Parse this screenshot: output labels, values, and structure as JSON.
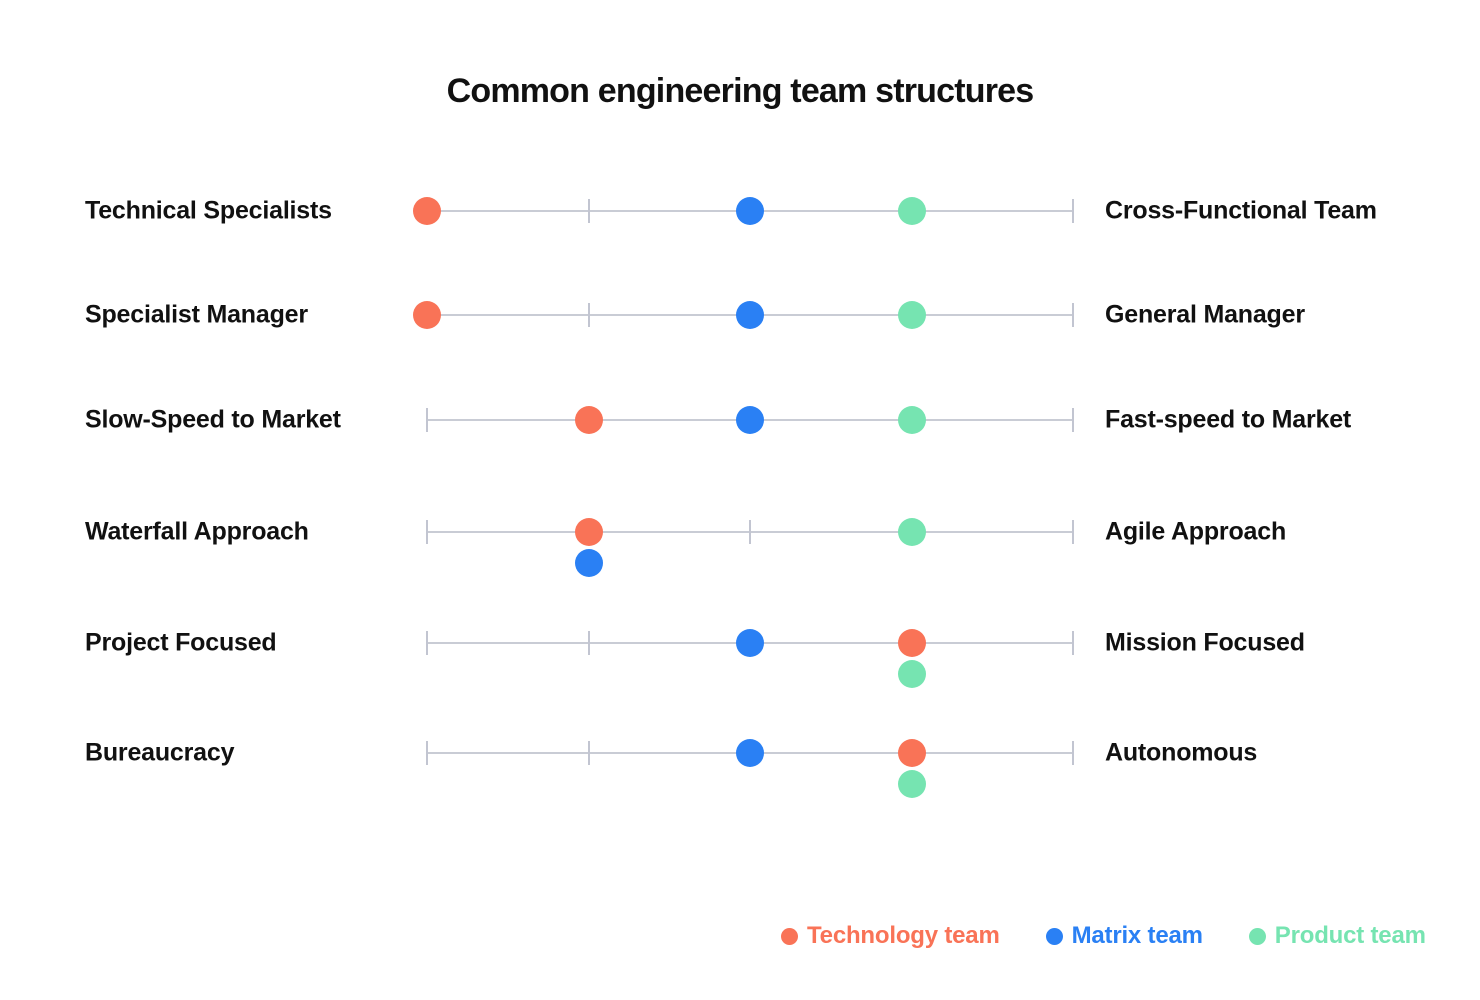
{
  "title": "Common engineering team structures",
  "colors": {
    "technology": "#F97357",
    "matrix": "#2A80F4",
    "product": "#76E4B1",
    "line": "#C9CCD5",
    "tick": "#C2C5D1",
    "text": "#111111",
    "background": "#FFFFFF"
  },
  "chart_data": {
    "type": "scatter",
    "subtype": "dot-spectrum",
    "title": "Common engineering team structures",
    "scale": {
      "min": 0,
      "max": 4,
      "ticks": [
        0,
        1,
        2,
        3,
        4
      ],
      "grid": false
    },
    "legend_position": "bottom-right",
    "legend": [
      {
        "name": "technology",
        "label": "Technology team",
        "color": "#F97357"
      },
      {
        "name": "matrix",
        "label": "Matrix team",
        "color": "#2A80F4"
      },
      {
        "name": "product",
        "label": "Product team",
        "color": "#76E4B1"
      }
    ],
    "rows": [
      {
        "left_label": "Technical Specialists",
        "right_label": "Cross-Functional Team",
        "dots": [
          {
            "team": "technology",
            "value": 0,
            "offset_below": false
          },
          {
            "team": "matrix",
            "value": 2,
            "offset_below": false
          },
          {
            "team": "product",
            "value": 3,
            "offset_below": false
          }
        ]
      },
      {
        "left_label": "Specialist Manager",
        "right_label": "General Manager",
        "dots": [
          {
            "team": "technology",
            "value": 0,
            "offset_below": false
          },
          {
            "team": "matrix",
            "value": 2,
            "offset_below": false
          },
          {
            "team": "product",
            "value": 3,
            "offset_below": false
          }
        ]
      },
      {
        "left_label": "Slow-Speed to Market",
        "right_label": "Fast-speed to Market",
        "dots": [
          {
            "team": "technology",
            "value": 1,
            "offset_below": false
          },
          {
            "team": "matrix",
            "value": 2,
            "offset_below": false
          },
          {
            "team": "product",
            "value": 3,
            "offset_below": false
          }
        ]
      },
      {
        "left_label": "Waterfall Approach",
        "right_label": "Agile Approach",
        "dots": [
          {
            "team": "technology",
            "value": 1,
            "offset_below": false
          },
          {
            "team": "matrix",
            "value": 1,
            "offset_below": true
          },
          {
            "team": "product",
            "value": 3,
            "offset_below": false
          }
        ]
      },
      {
        "left_label": "Project Focused",
        "right_label": "Mission Focused",
        "dots": [
          {
            "team": "matrix",
            "value": 2,
            "offset_below": false
          },
          {
            "team": "technology",
            "value": 3,
            "offset_below": false
          },
          {
            "team": "product",
            "value": 3,
            "offset_below": true
          }
        ]
      },
      {
        "left_label": "Bureaucracy",
        "right_label": "Autonomous",
        "dots": [
          {
            "team": "matrix",
            "value": 2,
            "offset_below": false
          },
          {
            "team": "technology",
            "value": 3,
            "offset_below": false
          },
          {
            "team": "product",
            "value": 3,
            "offset_below": true
          }
        ]
      }
    ]
  }
}
